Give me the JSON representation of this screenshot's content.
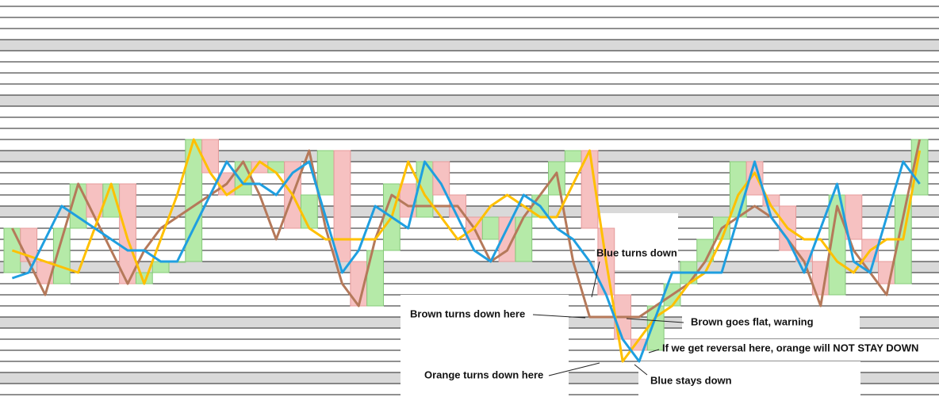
{
  "chart_data": {
    "type": "renko",
    "ylim": [
      0,
      35
    ],
    "yticks": [
      0,
      1,
      2,
      3,
      4,
      5,
      6,
      7,
      8,
      9,
      10,
      11,
      12,
      13,
      14,
      15,
      16,
      17,
      18,
      19,
      20,
      21,
      22,
      23,
      24,
      25,
      26,
      27,
      28,
      29,
      30,
      31,
      32,
      33,
      34,
      35
    ],
    "bands": [
      [
        1,
        2
      ],
      [
        6,
        7
      ],
      [
        11,
        12
      ],
      [
        16,
        17
      ],
      [
        21,
        22
      ],
      [
        26,
        27
      ],
      [
        31,
        32
      ]
    ],
    "band_color": "#d9d9d9",
    "up_color": "#b5eaa8",
    "down_color": "#f6c1c1",
    "bars": [
      [
        11,
        15
      ],
      [
        15,
        12
      ],
      [
        12,
        10
      ],
      [
        10,
        15
      ],
      [
        15,
        19
      ],
      [
        19,
        16
      ],
      [
        16,
        19
      ],
      [
        19,
        10
      ],
      [
        10,
        11
      ],
      [
        11,
        12
      ],
      [
        12,
        12
      ],
      [
        12,
        23
      ],
      [
        23,
        20
      ],
      [
        20,
        18
      ],
      [
        18,
        21
      ],
      [
        21,
        20
      ],
      [
        20,
        21
      ],
      [
        21,
        15
      ],
      [
        15,
        18
      ],
      [
        18,
        22
      ],
      [
        22,
        12
      ],
      [
        12,
        8
      ],
      [
        8,
        13
      ],
      [
        13,
        19
      ],
      [
        19,
        16
      ],
      [
        16,
        21
      ],
      [
        21,
        18
      ],
      [
        18,
        16
      ],
      [
        16,
        14
      ],
      [
        14,
        16
      ],
      [
        16,
        12
      ],
      [
        12,
        16
      ],
      [
        16,
        18
      ],
      [
        18,
        21
      ],
      [
        21,
        22
      ],
      [
        22,
        15
      ],
      [
        15,
        9
      ],
      [
        9,
        5
      ],
      [
        5,
        4
      ],
      [
        4,
        8
      ],
      [
        8,
        10
      ],
      [
        10,
        12
      ],
      [
        12,
        14
      ],
      [
        14,
        16
      ],
      [
        16,
        21
      ],
      [
        21,
        18
      ],
      [
        18,
        17
      ],
      [
        17,
        13
      ],
      [
        13,
        12
      ],
      [
        12,
        9
      ],
      [
        9,
        18
      ],
      [
        18,
        14
      ],
      [
        14,
        12
      ],
      [
        12,
        10
      ],
      [
        10,
        18
      ],
      [
        18,
        23
      ]
    ],
    "series": [
      {
        "name": "Brown",
        "color": "#b5795a",
        "values": [
          15,
          12,
          9,
          14,
          19,
          16,
          13,
          10,
          13,
          15,
          16,
          17,
          18,
          19,
          21,
          18,
          14,
          18,
          22,
          15,
          10,
          8,
          14,
          18,
          17,
          17,
          17,
          17,
          15,
          12,
          13,
          16,
          18,
          20,
          12,
          7,
          7,
          7,
          7,
          8,
          9,
          10,
          12,
          15,
          16,
          17,
          16,
          14,
          12,
          8,
          17,
          13,
          11,
          9,
          16,
          23
        ]
      },
      {
        "name": "Orange",
        "color": "#ffc000",
        "values": [
          13,
          12.5,
          12,
          11.5,
          11,
          15,
          19,
          14,
          10,
          14,
          18,
          23,
          20,
          18,
          19,
          21,
          20,
          18,
          15,
          14,
          14,
          14,
          14,
          16,
          21,
          18,
          16,
          14,
          15,
          17,
          18,
          17,
          16,
          16,
          19,
          22,
          12,
          3,
          5,
          7,
          8,
          10,
          11,
          14,
          18,
          20,
          17,
          15,
          14,
          14,
          12,
          11,
          13,
          14,
          14,
          22
        ]
      },
      {
        "name": "Blue",
        "color": "#1f9fe0",
        "values": [
          10.5,
          11,
          14,
          17,
          16,
          15,
          14,
          13,
          13,
          12,
          12,
          15,
          18,
          21,
          19,
          19,
          18,
          20,
          21,
          16,
          11,
          13,
          17,
          16,
          15,
          21,
          19,
          16,
          13,
          12,
          15,
          18,
          17,
          15,
          14,
          12,
          9,
          5,
          3,
          7,
          11,
          11,
          11,
          11,
          16,
          21,
          16,
          14,
          11,
          15,
          19,
          12,
          11,
          16,
          21,
          19
        ]
      }
    ],
    "annotations": [
      "Blue turns down",
      "Brown turns down here",
      "Brown goes flat, warning",
      "If we get reversal here, orange will NOT STAY DOWN",
      "Orange turns down here",
      "Blue stays down"
    ]
  }
}
